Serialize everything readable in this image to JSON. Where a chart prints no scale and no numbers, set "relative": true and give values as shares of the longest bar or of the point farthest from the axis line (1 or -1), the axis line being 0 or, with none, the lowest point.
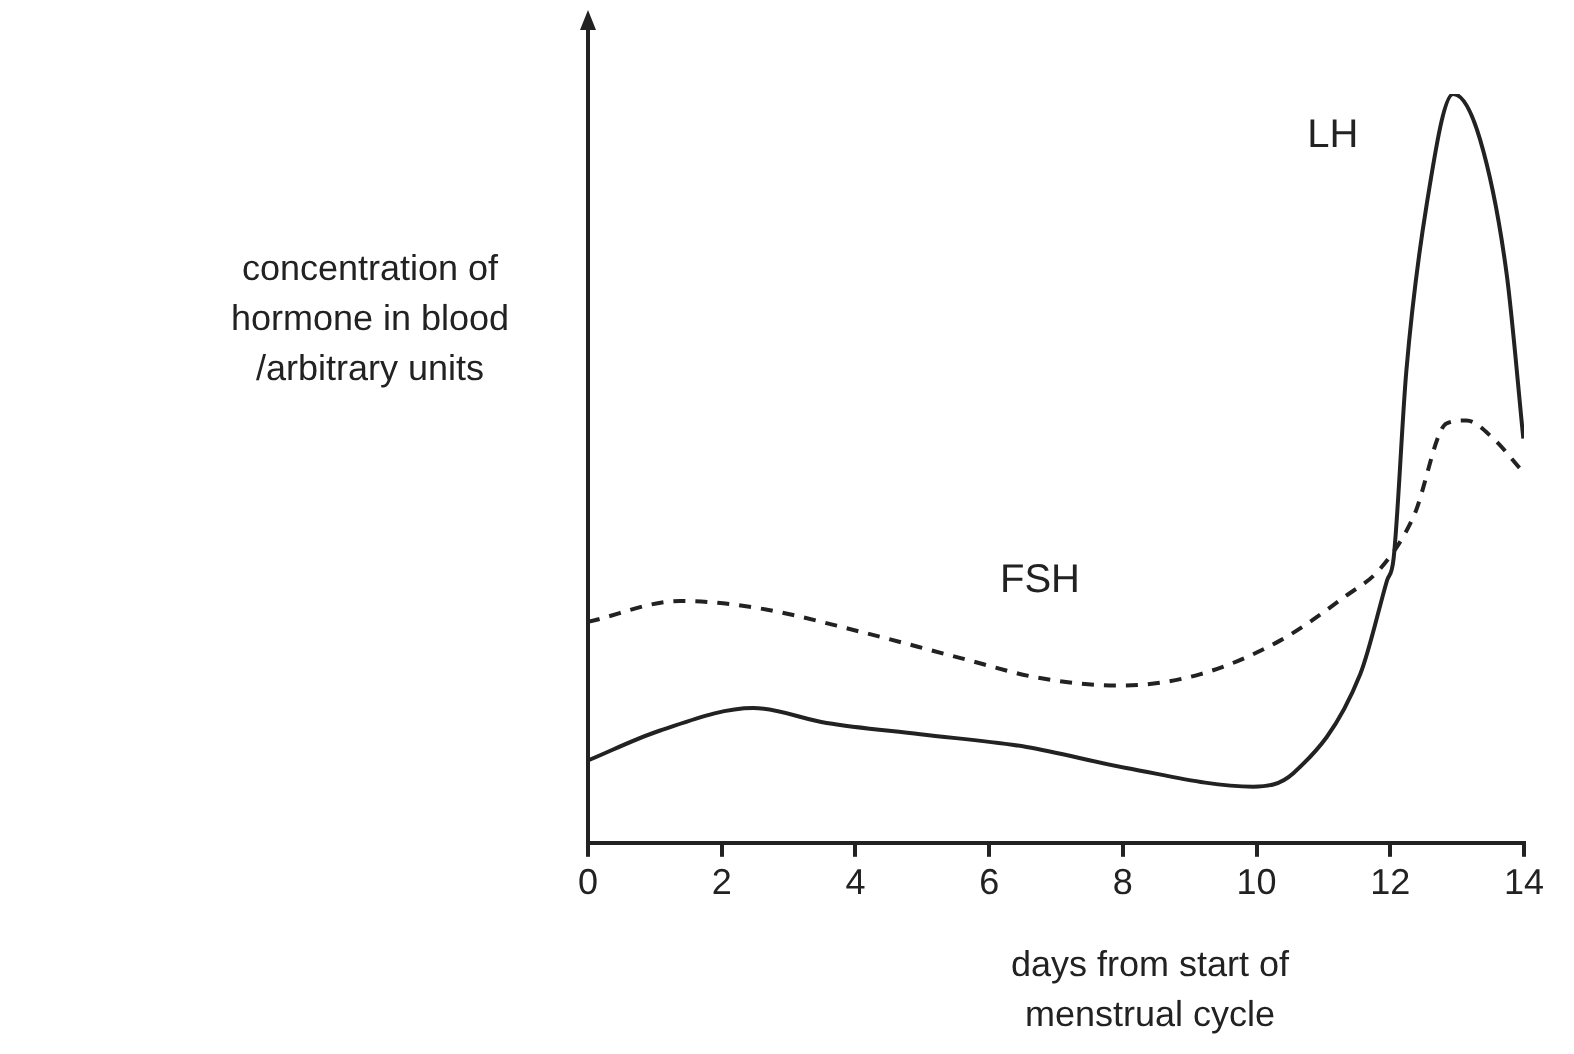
{
  "chart_data": {
    "type": "line",
    "relative": true,
    "xlabel": "days from start of\nmenstrual cycle",
    "ylabel": "concentration of\nhormone in blood\n/arbitrary units",
    "xlim": [
      0,
      14
    ],
    "xticks": [
      0,
      2,
      4,
      6,
      8,
      10,
      12,
      14
    ],
    "grid": false,
    "legend": false,
    "marker": "none",
    "series": [
      {
        "name": "LH",
        "color": "#222222",
        "line_style": "solid",
        "x": [
          0,
          1.08,
          2.47,
          3.57,
          4.97,
          6.56,
          8.05,
          9.95,
          10.55,
          11.55,
          11.95,
          12.05,
          12.24,
          12.54,
          12.94,
          13.34,
          13.74,
          13.99
        ],
        "values": [
          0.11,
          0.15,
          0.18,
          0.16,
          0.145,
          0.128,
          0.1,
          0.075,
          0.093,
          0.225,
          0.35,
          0.38,
          0.63,
          0.85,
          1,
          0.94,
          0.76,
          0.54
        ]
      },
      {
        "name": "FSH",
        "color": "#222222",
        "line_style": "dashed",
        "x": [
          0,
          1.38,
          2.57,
          4.07,
          5.56,
          6.76,
          7.96,
          9.15,
          10.35,
          11.34,
          11.85,
          12.35,
          12.84,
          13.14,
          13.54,
          13.94
        ],
        "values": [
          0.295,
          0.323,
          0.313,
          0.282,
          0.247,
          0.22,
          0.21,
          0.225,
          0.27,
          0.33,
          0.366,
          0.436,
          0.56,
          0.564,
          0.54,
          0.5
        ]
      }
    ]
  }
}
